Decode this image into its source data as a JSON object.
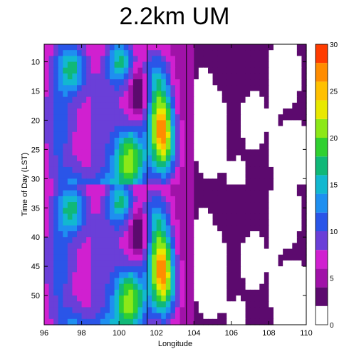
{
  "title": "2.2km UM",
  "chart_data": {
    "type": "heatmap",
    "title": "2.2km UM",
    "xlabel": "Longitude",
    "ylabel": "Time of Day (LST)",
    "xlim": [
      96,
      110
    ],
    "ylim": [
      55,
      7
    ],
    "x_ticks": [
      "96",
      "98",
      "100",
      "102",
      "104",
      "106",
      "108",
      "110"
    ],
    "y_ticks": [
      "10",
      "15",
      "20",
      "25",
      "30",
      "35",
      "40",
      "45",
      "50"
    ],
    "vertical_lines": [
      101.5,
      103.6
    ],
    "colorbar": {
      "min": 0,
      "max": 30,
      "tick_labels": [
        "0",
        "5",
        "10",
        "15",
        "20",
        "25",
        "30"
      ],
      "levels": [
        0,
        2,
        4,
        6,
        8,
        10,
        12,
        14,
        16,
        18,
        20,
        22,
        24,
        26,
        28,
        30
      ],
      "colors": [
        "#ffffff",
        "#5c0a6e",
        "#a012a8",
        "#d020d0",
        "#6a3fd8",
        "#2a55e8",
        "#1e8ff0",
        "#12b8d0",
        "#10b878",
        "#30d030",
        "#8ce818",
        "#e8e800",
        "#ffc000",
        "#ff8c00",
        "#ff3c00"
      ]
    },
    "field_note": "Diurnal cycle repeats with ~24 h period; maxima near lon 102-103 around 20-25 and 45-50 LST; secondary maxima near lon 100.5 around 28 and 52 LST."
  }
}
